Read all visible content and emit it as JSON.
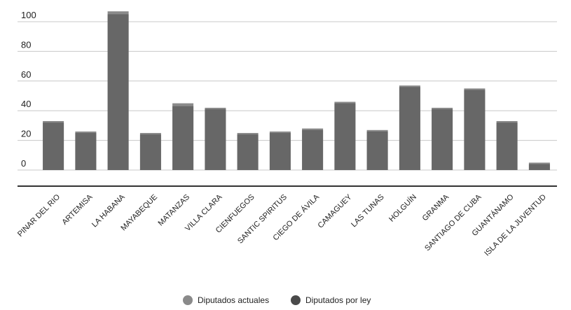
{
  "chart_data": {
    "type": "bar",
    "categories": [
      "PINAR DEL RIO",
      "ARTEMISA",
      "LA HABANA",
      "MAYABEQUE",
      "MATANZAS",
      "VILLA CLARA",
      "CIENFUEGOS",
      "SANTIC SPIRITUS",
      "CIEGO DE ÁVILA",
      "CAMAGUEY",
      "LAS TUNAS",
      "HOLGUÍN",
      "GRANMA",
      "SANTIAGO DE CUBA",
      "GUANTÁNAMO",
      "ISLA DE LA JUVENTUD"
    ],
    "series": [
      {
        "name": "Diputados actuales",
        "color": "#8a8a8a",
        "values": [
          33,
          26,
          107,
          25,
          45,
          42,
          25,
          26,
          28,
          46,
          27,
          57,
          42,
          55,
          33,
          5
        ]
      },
      {
        "name": "Diputados por ley",
        "color": "#4a4a4a",
        "values": [
          32,
          25,
          105,
          24,
          43,
          41,
          24,
          25,
          27,
          45,
          26,
          56,
          41,
          54,
          32,
          4
        ]
      }
    ],
    "yticks": [
      "100",
      "80",
      "60",
      "40",
      "20",
      "0"
    ],
    "ylim": [
      0,
      108
    ],
    "legend_position": "bottom-center",
    "grid": true,
    "title": "",
    "xlabel": "",
    "ylabel": ""
  }
}
